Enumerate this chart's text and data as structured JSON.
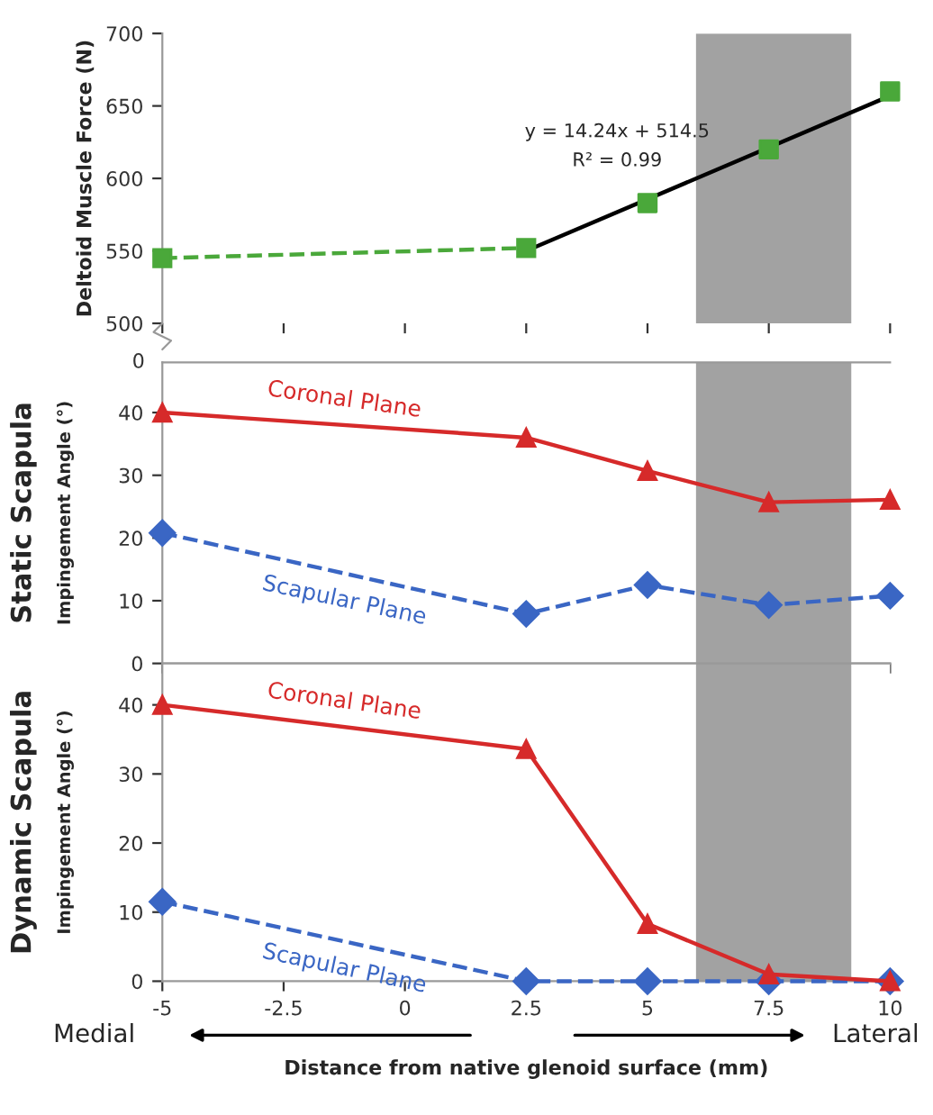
{
  "chart_data": [
    {
      "type": "line",
      "ylabel": "Deltoid Muscle Force (N)",
      "xlim": [
        -5,
        10
      ],
      "xticks": [
        -5,
        -2.5,
        0,
        2.5,
        5,
        7.5,
        10
      ],
      "ylim": [
        500,
        700
      ],
      "yticks": [
        500,
        550,
        600,
        650,
        700
      ],
      "tick_labels": "y",
      "series": [
        {
          "type": "line",
          "color": "#4aa83a",
          "x": [
            -5,
            2.5
          ],
          "values": [
            545,
            552
          ],
          "marker": "square",
          "line_style": "dashed"
        },
        {
          "type": "scatter",
          "color": "#4aa83a",
          "x": [
            5,
            7.5,
            10
          ],
          "values": [
            583,
            620,
            660
          ],
          "marker": "square"
        },
        {
          "type": "line",
          "color": "#000000",
          "x": [
            2.5,
            10
          ],
          "values": [
            550,
            657
          ],
          "marker": "none",
          "line_style": "solid"
        }
      ],
      "bands": [
        {
          "axis": "x",
          "from": 6,
          "to": 9.2,
          "color": "#555555"
        }
      ],
      "annotations": [
        "y = 14.24x + 514.5",
        "R² = 0.99",
        "0"
      ]
    },
    {
      "type": "line",
      "title": "Static Scapula",
      "ylabel": "Impingement Angle (°)",
      "xlim": [
        -5,
        10
      ],
      "xticks": [
        -5,
        -2.5,
        0,
        2.5,
        5,
        7.5,
        10
      ],
      "ylim": [
        0,
        48
      ],
      "yticks": [
        0,
        10,
        20,
        30,
        40
      ],
      "tick_labels": "y",
      "series": [
        {
          "name": "Coronal Plane",
          "color": "#d62a2a",
          "x": [
            -5,
            2.5,
            5,
            7.5,
            10
          ],
          "values": [
            40,
            36,
            30.7,
            25.7,
            26.1
          ],
          "marker": "triangle",
          "line_style": "solid"
        },
        {
          "name": "Scapular Plane",
          "color": "#3a66c4",
          "x": [
            -5,
            2.5,
            5,
            7.5,
            10
          ],
          "values": [
            20.8,
            7.9,
            12.5,
            9.3,
            10.8
          ],
          "marker": "diamond",
          "line_style": "dashed"
        }
      ],
      "bands": [
        {
          "axis": "x",
          "from": 6,
          "to": 9.2,
          "color": "#555555"
        }
      ]
    },
    {
      "type": "line",
      "title": "Dynamic Scapula",
      "ylabel": "Impingement Angle (°)",
      "xlabel": "Distance from native glenoid surface (mm)",
      "xlim": [
        -5,
        10
      ],
      "xticks": [
        -5,
        -2.5,
        0,
        2.5,
        5,
        7.5,
        10
      ],
      "ylim": [
        0,
        46
      ],
      "yticks": [
        0,
        10,
        20,
        30,
        40
      ],
      "series": [
        {
          "name": "Coronal Plane",
          "color": "#d62a2a",
          "x": [
            -5,
            2.5,
            5,
            7.5,
            10
          ],
          "values": [
            40,
            33.6,
            8.3,
            1,
            0
          ],
          "marker": "triangle",
          "line_style": "solid"
        },
        {
          "name": "Scapular Plane",
          "color": "#3a66c4",
          "x": [
            -5,
            2.5,
            5,
            7.5,
            10
          ],
          "values": [
            11.5,
            0,
            0,
            0,
            0
          ],
          "marker": "diamond",
          "line_style": "dashed"
        }
      ],
      "bands": [
        {
          "axis": "x",
          "from": 6,
          "to": 9.2,
          "color": "#555555"
        }
      ],
      "annotations": [
        "Medial",
        "Lateral"
      ]
    }
  ]
}
